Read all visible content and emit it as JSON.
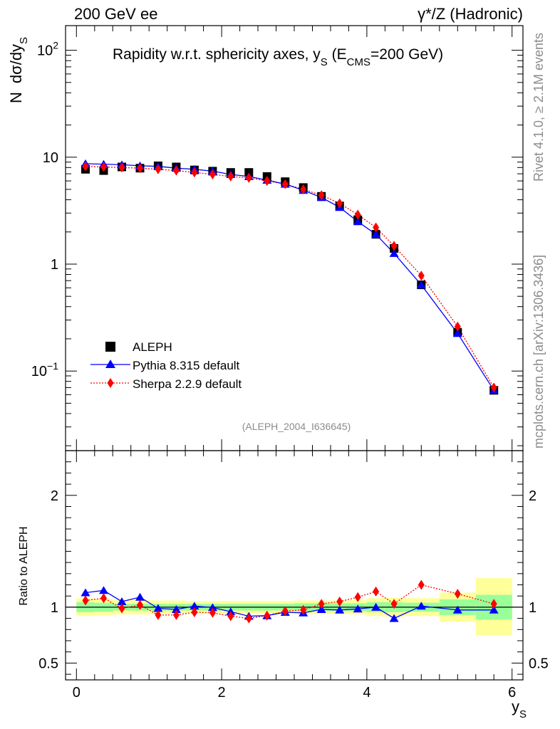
{
  "header": {
    "left": "200 GeV ee",
    "right": "γ*/Z (Hadronic)"
  },
  "side_labels": {
    "rivet": "Rivet 4.1.0, ≥ 2.1M events",
    "mcplots": "mcplots.cern.ch [arXiv:1306.3436]"
  },
  "watermark": "(ALEPH_2004_I636645)",
  "colors": {
    "data": "#000000",
    "pythia": "#0000ff",
    "sherpa": "#ff0000",
    "band_inner": "#99ff99",
    "band_outer": "#ffff99"
  },
  "chart_data": [
    {
      "type": "scatter",
      "title": "Rapidity w.r.t. sphericity axes, y_S (E_CMS=200 GeV)",
      "title_parts": {
        "main": "Rapidity w.r.t. sphericity axes, y",
        "sub_s": "S",
        "open": " (E",
        "sub_cms": "CMS",
        "close": "=200 GeV)"
      },
      "xlabel": "y_S",
      "ylabel": "N dσ/dy_S",
      "ylabel_parts": {
        "n": "N",
        "main": "dσ/dy",
        "sub": "S"
      },
      "yscale": "log",
      "xlim": [
        -0.15,
        6.15
      ],
      "ylim": [
        0.018,
        170
      ],
      "yticks": [
        {
          "value": 100,
          "base": "10",
          "exp": "2"
        },
        {
          "value": 10,
          "label": "10"
        },
        {
          "value": 1,
          "label": "1"
        },
        {
          "value": 0.1,
          "base": "10",
          "exp": "−1"
        }
      ],
      "legend_position": "bottom-left",
      "bins": [
        [
          0.0,
          0.25
        ],
        [
          0.25,
          0.5
        ],
        [
          0.5,
          0.75
        ],
        [
          0.75,
          1.0
        ],
        [
          1.0,
          1.25
        ],
        [
          1.25,
          1.5
        ],
        [
          1.5,
          1.75
        ],
        [
          1.75,
          2.0
        ],
        [
          2.0,
          2.25
        ],
        [
          2.25,
          2.5
        ],
        [
          2.5,
          2.75
        ],
        [
          2.75,
          3.0
        ],
        [
          3.0,
          3.25
        ],
        [
          3.25,
          3.5
        ],
        [
          3.5,
          3.75
        ],
        [
          3.75,
          4.0
        ],
        [
          4.0,
          4.25
        ],
        [
          4.25,
          4.5
        ],
        [
          4.5,
          5.0
        ],
        [
          5.0,
          5.5
        ],
        [
          5.5,
          6.0
        ]
      ],
      "x": [
        0.125,
        0.375,
        0.625,
        0.875,
        1.125,
        1.375,
        1.625,
        1.875,
        2.125,
        2.375,
        2.625,
        2.875,
        3.125,
        3.375,
        3.625,
        3.875,
        4.125,
        4.375,
        4.75,
        5.25,
        5.75
      ],
      "series": [
        {
          "name": "ALEPH",
          "marker": "square",
          "values": [
            7.7,
            7.5,
            8.1,
            7.9,
            8.3,
            8.1,
            7.6,
            7.4,
            7.2,
            7.2,
            6.6,
            5.9,
            5.2,
            4.3,
            3.5,
            2.6,
            1.9,
            1.4,
            0.64,
            0.23,
            0.066
          ]
        },
        {
          "name": "Pythia 8.315 default",
          "marker": "triangle",
          "line": "solid",
          "values": [
            8.7,
            8.6,
            8.5,
            8.3,
            8.2,
            7.9,
            7.7,
            7.4,
            6.9,
            6.6,
            6.1,
            5.6,
            4.9,
            4.2,
            3.4,
            2.5,
            1.9,
            1.26,
            0.64,
            0.225,
            0.066
          ]
        },
        {
          "name": "Sherpa 2.2.9 default",
          "marker": "diamond",
          "line": "dotted",
          "values": [
            8.2,
            8.1,
            8.0,
            7.9,
            7.7,
            7.5,
            7.2,
            6.9,
            6.6,
            6.4,
            6.0,
            5.6,
            5.0,
            4.4,
            3.7,
            2.9,
            2.2,
            1.48,
            0.78,
            0.26,
            0.07
          ]
        }
      ]
    },
    {
      "type": "scatter",
      "title": "",
      "xlabel": "y_S",
      "xlabel_parts": {
        "main": "y",
        "sub": "S"
      },
      "ylabel": "Ratio to ALEPH",
      "xlim": [
        -0.15,
        6.15
      ],
      "ylim": [
        0.35,
        2.4
      ],
      "xticks": [
        0,
        2,
        4,
        6
      ],
      "yticks": [
        2,
        1,
        0.5
      ],
      "reference_line": 1,
      "x": [
        0.125,
        0.375,
        0.625,
        0.875,
        1.125,
        1.375,
        1.625,
        1.875,
        2.125,
        2.375,
        2.625,
        2.875,
        3.125,
        3.375,
        3.625,
        3.875,
        4.125,
        4.375,
        4.75,
        5.25,
        5.75
      ],
      "series": [
        {
          "name": "Pythia 8.315 default",
          "marker": "triangle",
          "values": [
            1.13,
            1.15,
            1.05,
            1.09,
            0.99,
            0.98,
            1.01,
            0.997,
            0.96,
            0.92,
            0.925,
            0.955,
            0.95,
            0.98,
            0.975,
            0.985,
            1.0,
            0.9,
            1.01,
            0.975,
            0.975
          ]
        },
        {
          "name": "Sherpa 2.2.9 default",
          "marker": "diamond",
          "values": [
            1.06,
            1.08,
            0.99,
            1.02,
            0.93,
            0.93,
            0.955,
            0.95,
            0.92,
            0.9,
            0.925,
            0.965,
            0.975,
            1.03,
            1.05,
            1.09,
            1.14,
            1.03,
            1.2,
            1.12,
            1.03
          ]
        }
      ],
      "uncertainty_bands": {
        "inner_low": [
          0.955,
          0.96,
          0.97,
          0.97,
          0.97,
          0.97,
          0.97,
          0.97,
          0.97,
          0.97,
          0.97,
          0.97,
          0.965,
          0.965,
          0.965,
          0.965,
          0.955,
          0.955,
          0.96,
          0.93,
          0.89
        ],
        "inner_high": [
          1.045,
          1.04,
          1.03,
          1.03,
          1.03,
          1.03,
          1.03,
          1.03,
          1.03,
          1.03,
          1.03,
          1.03,
          1.035,
          1.035,
          1.035,
          1.035,
          1.045,
          1.045,
          1.04,
          1.07,
          1.11
        ],
        "outer_low": [
          0.92,
          0.925,
          0.935,
          0.935,
          0.94,
          0.94,
          0.945,
          0.945,
          0.945,
          0.945,
          0.945,
          0.945,
          0.94,
          0.94,
          0.94,
          0.935,
          0.92,
          0.915,
          0.92,
          0.87,
          0.75
        ],
        "outer_high": [
          1.08,
          1.075,
          1.065,
          1.065,
          1.06,
          1.06,
          1.055,
          1.055,
          1.055,
          1.055,
          1.055,
          1.055,
          1.06,
          1.06,
          1.06,
          1.065,
          1.08,
          1.085,
          1.08,
          1.13,
          1.26
        ]
      }
    }
  ]
}
